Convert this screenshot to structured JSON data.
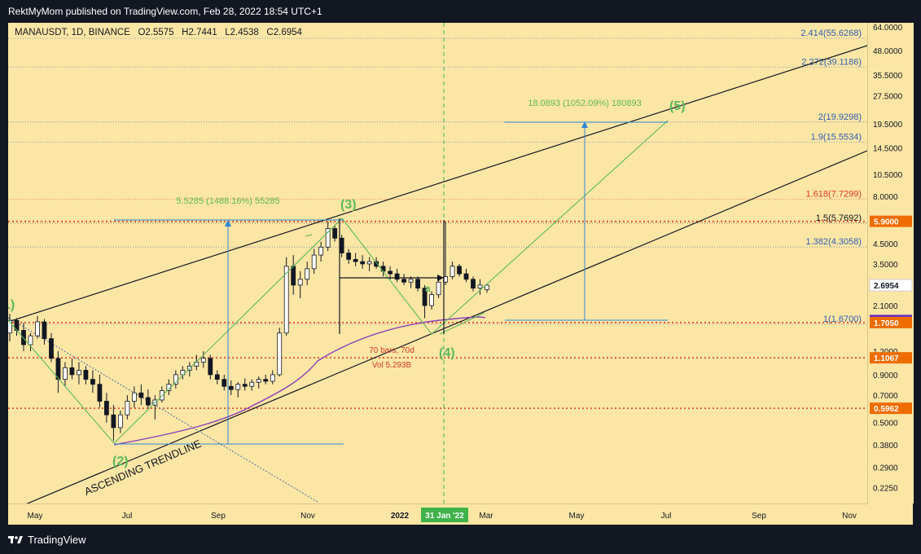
{
  "header": {
    "publisher_text": "RektMyMom published on TradingView.com, Feb 28, 2022 18:54 UTC+1"
  },
  "footer": {
    "brand": "TradingView",
    "logo_icon": "tradingview-logo-icon"
  },
  "colors": {
    "background": "#fce6a5",
    "chrome": "#131722",
    "candle": "#131722",
    "elliott_green": "#5cb85c",
    "fib_blue": "#2f5fb3",
    "fib_red": "#d63a2a",
    "ma_purple": "#8a3fb5",
    "measure_blue": "#2f86d6",
    "red_dotted": "#e53b1f"
  },
  "chart_data": {
    "type": "candlestick",
    "symbol_line": {
      "symbol": "MANAUSDT, 1D, BINANCE",
      "open": "O2.5575",
      "high": "H2.7441",
      "low": "L2.4538",
      "close": "C2.6954"
    },
    "y_scale": "log",
    "ylim": [
      0.2,
      64
    ],
    "y_ticks": [
      "64.0000",
      "48.0000",
      "35.5000",
      "27.5000",
      "19.5000",
      "14.5000",
      "10.5000",
      "8.0000",
      "4.5000",
      "3.5000",
      "2.1000",
      "1.2000",
      "0.9000",
      "0.7000",
      "0.5000",
      "0.3800",
      "0.2900",
      "0.2250"
    ],
    "x_ticks": [
      "May",
      "Jul",
      "Sep",
      "Nov",
      "2022",
      "Mar",
      "May",
      "Jul",
      "Sep",
      "Nov"
    ],
    "crosshair_x_label": "31 Jan '22",
    "price_badges": [
      {
        "label": "5.9000",
        "value": 5.9,
        "color": "#ef6c00"
      },
      {
        "label": "2.6954",
        "value": 2.6954,
        "color": "#ffffff"
      },
      {
        "label": "1.7485",
        "value": 1.7485,
        "color": "#6b2bbf"
      },
      {
        "label": "1.7050",
        "value": 1.705,
        "color": "#ef6c00"
      },
      {
        "label": "1.1067",
        "value": 1.1067,
        "color": "#ef6c00"
      },
      {
        "label": "0.5962",
        "value": 0.5962,
        "color": "#ef6c00"
      }
    ],
    "fib_levels": [
      {
        "label": "2.414(55.6268)",
        "value": 55.6268,
        "color": "#2f5fb3"
      },
      {
        "label": "2.272(39.1186)",
        "value": 39.1186,
        "color": "#2f5fb3"
      },
      {
        "label": "2(19.9298)",
        "value": 19.9298,
        "color": "#2f5fb3"
      },
      {
        "label": "1.9(15.5534)",
        "value": 15.5534,
        "color": "#2f5fb3"
      },
      {
        "label": "1.618(7.7299)",
        "value": 7.7299,
        "color": "#d63a2a"
      },
      {
        "label": "1.5(5.7692)",
        "value": 5.7692,
        "color": "#131722"
      },
      {
        "label": "1.382(4.3058)",
        "value": 4.3058,
        "color": "#2f5fb3"
      },
      {
        "label": "1(1.6700)",
        "value": 1.67,
        "color": "#2f5fb3"
      }
    ],
    "red_dotted_levels": [
      5.9,
      1.705,
      1.1067,
      0.5962
    ],
    "wave_labels": [
      "1)",
      "(2)",
      "(3)",
      "(4)",
      "(5)"
    ],
    "measure_labels": [
      "5.5285 (1488.16%) 55285",
      "18.0893 (1052.09%) 180893"
    ],
    "trendline_label": "ASCENDING TRENDLINE",
    "bars_range_label": "70 bars, 70d",
    "volume_label": "Vol 5.293B",
    "small_wave_label": "a",
    "series": [
      {
        "type": "candles_ohlc_approx",
        "values": [
          [
            1.5,
            1.9,
            1.35,
            1.75
          ],
          [
            1.75,
            1.8,
            1.45,
            1.55
          ],
          [
            1.55,
            1.7,
            1.2,
            1.3
          ],
          [
            1.3,
            1.5,
            1.2,
            1.45
          ],
          [
            1.45,
            1.85,
            1.4,
            1.72
          ],
          [
            1.72,
            1.78,
            1.3,
            1.4
          ],
          [
            1.4,
            1.5,
            1.05,
            1.1
          ],
          [
            1.1,
            1.2,
            0.72,
            0.85
          ],
          [
            0.85,
            1.05,
            0.78,
            0.98
          ],
          [
            0.98,
            1.1,
            0.85,
            0.9
          ],
          [
            0.9,
            1.05,
            0.8,
            0.95
          ],
          [
            0.95,
            1.0,
            0.8,
            0.85
          ],
          [
            0.85,
            0.95,
            0.72,
            0.8
          ],
          [
            0.8,
            0.9,
            0.6,
            0.65
          ],
          [
            0.65,
            0.72,
            0.5,
            0.55
          ],
          [
            0.55,
            0.62,
            0.4,
            0.47
          ],
          [
            0.47,
            0.58,
            0.44,
            0.55
          ],
          [
            0.55,
            0.7,
            0.52,
            0.65
          ],
          [
            0.65,
            0.78,
            0.6,
            0.72
          ],
          [
            0.72,
            0.8,
            0.62,
            0.68
          ],
          [
            0.68,
            0.75,
            0.6,
            0.62
          ],
          [
            0.62,
            0.7,
            0.52,
            0.66
          ],
          [
            0.66,
            0.78,
            0.64,
            0.74
          ],
          [
            0.74,
            0.85,
            0.7,
            0.8
          ],
          [
            0.8,
            0.95,
            0.76,
            0.9
          ],
          [
            0.9,
            1.0,
            0.85,
            0.95
          ],
          [
            0.95,
            1.05,
            0.88,
            1.0
          ],
          [
            1.0,
            1.15,
            0.95,
            1.05
          ],
          [
            1.05,
            1.2,
            0.98,
            1.1
          ],
          [
            1.1,
            1.15,
            0.85,
            0.9
          ],
          [
            0.9,
            0.95,
            0.8,
            0.85
          ],
          [
            0.85,
            0.9,
            0.74,
            0.78
          ],
          [
            0.78,
            0.84,
            0.7,
            0.75
          ],
          [
            0.75,
            0.82,
            0.68,
            0.8
          ],
          [
            0.8,
            0.86,
            0.74,
            0.78
          ],
          [
            0.78,
            0.85,
            0.74,
            0.82
          ],
          [
            0.82,
            0.88,
            0.76,
            0.85
          ],
          [
            0.85,
            0.9,
            0.8,
            0.83
          ],
          [
            0.83,
            0.95,
            0.8,
            0.9
          ],
          [
            0.9,
            1.6,
            0.88,
            1.5
          ],
          [
            1.5,
            3.8,
            1.45,
            3.4
          ],
          [
            3.4,
            3.9,
            2.4,
            2.7
          ],
          [
            2.7,
            3.2,
            2.3,
            2.9
          ],
          [
            2.9,
            3.6,
            2.7,
            3.3
          ],
          [
            3.3,
            4.2,
            3.1,
            3.9
          ],
          [
            3.9,
            4.6,
            3.6,
            4.3
          ],
          [
            4.3,
            5.9,
            4.1,
            5.4
          ],
          [
            5.4,
            5.6,
            4.6,
            4.8
          ],
          [
            4.8,
            5.0,
            3.8,
            4.0
          ],
          [
            4.0,
            4.2,
            3.5,
            3.7
          ],
          [
            3.7,
            4.0,
            3.4,
            3.6
          ],
          [
            3.6,
            3.9,
            3.3,
            3.5
          ],
          [
            3.5,
            3.8,
            3.2,
            3.6
          ],
          [
            3.6,
            3.8,
            3.3,
            3.4
          ],
          [
            3.4,
            3.6,
            3.0,
            3.2
          ],
          [
            3.2,
            3.4,
            2.9,
            3.1
          ],
          [
            3.1,
            3.3,
            2.8,
            2.9
          ],
          [
            2.9,
            3.1,
            2.7,
            2.8
          ],
          [
            2.8,
            3.0,
            2.6,
            2.9
          ],
          [
            2.9,
            3.0,
            2.5,
            2.6
          ],
          [
            2.6,
            2.7,
            1.8,
            2.1
          ],
          [
            2.1,
            2.5,
            2.0,
            2.4
          ],
          [
            2.4,
            2.9,
            2.3,
            2.8
          ],
          [
            2.8,
            5.9,
            2.7,
            3.0
          ],
          [
            3.0,
            3.6,
            2.9,
            3.4
          ],
          [
            3.4,
            3.5,
            3.0,
            3.1
          ],
          [
            3.1,
            3.3,
            2.8,
            2.9
          ],
          [
            2.9,
            3.0,
            2.5,
            2.6
          ],
          [
            2.6,
            2.9,
            2.4,
            2.7
          ],
          [
            2.5575,
            2.7441,
            2.4538,
            2.6954
          ]
        ]
      }
    ]
  }
}
